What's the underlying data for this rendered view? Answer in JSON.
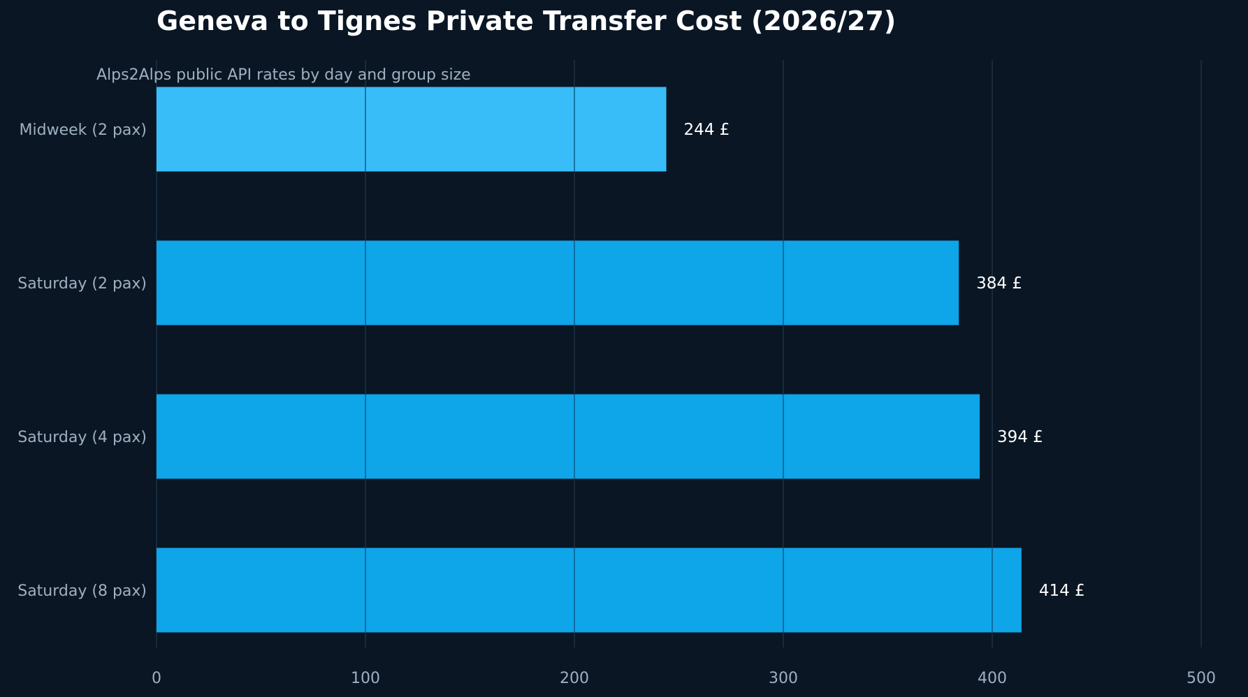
{
  "chart_data": {
    "type": "bar",
    "orientation": "horizontal",
    "title": "Geneva to Tignes Private Transfer Cost (2026/27)",
    "subtitle": "Alps2Alps public API rates by day and group size",
    "categories": [
      "Midweek (2 pax)",
      "Saturday (2 pax)",
      "Saturday (4 pax)",
      "Saturday (8 pax)"
    ],
    "values": [
      244,
      384,
      394,
      414
    ],
    "value_labels": [
      "244 £",
      "384 £",
      "394 £",
      "414 £"
    ],
    "xlim": [
      0,
      500
    ],
    "xticks": [
      0,
      100,
      200,
      300,
      400,
      500
    ],
    "xtick_labels": [
      "0",
      "100",
      "200",
      "300",
      "400",
      "500"
    ],
    "grid": "vertical",
    "colors": {
      "background": "#0a1624",
      "highlight_bar": "#38bdf8",
      "bar": "#0ea5e9",
      "grid": "#1d3145",
      "text": "#ffffff",
      "muted_text": "#9fb0c1"
    },
    "highlight_index": 0
  }
}
